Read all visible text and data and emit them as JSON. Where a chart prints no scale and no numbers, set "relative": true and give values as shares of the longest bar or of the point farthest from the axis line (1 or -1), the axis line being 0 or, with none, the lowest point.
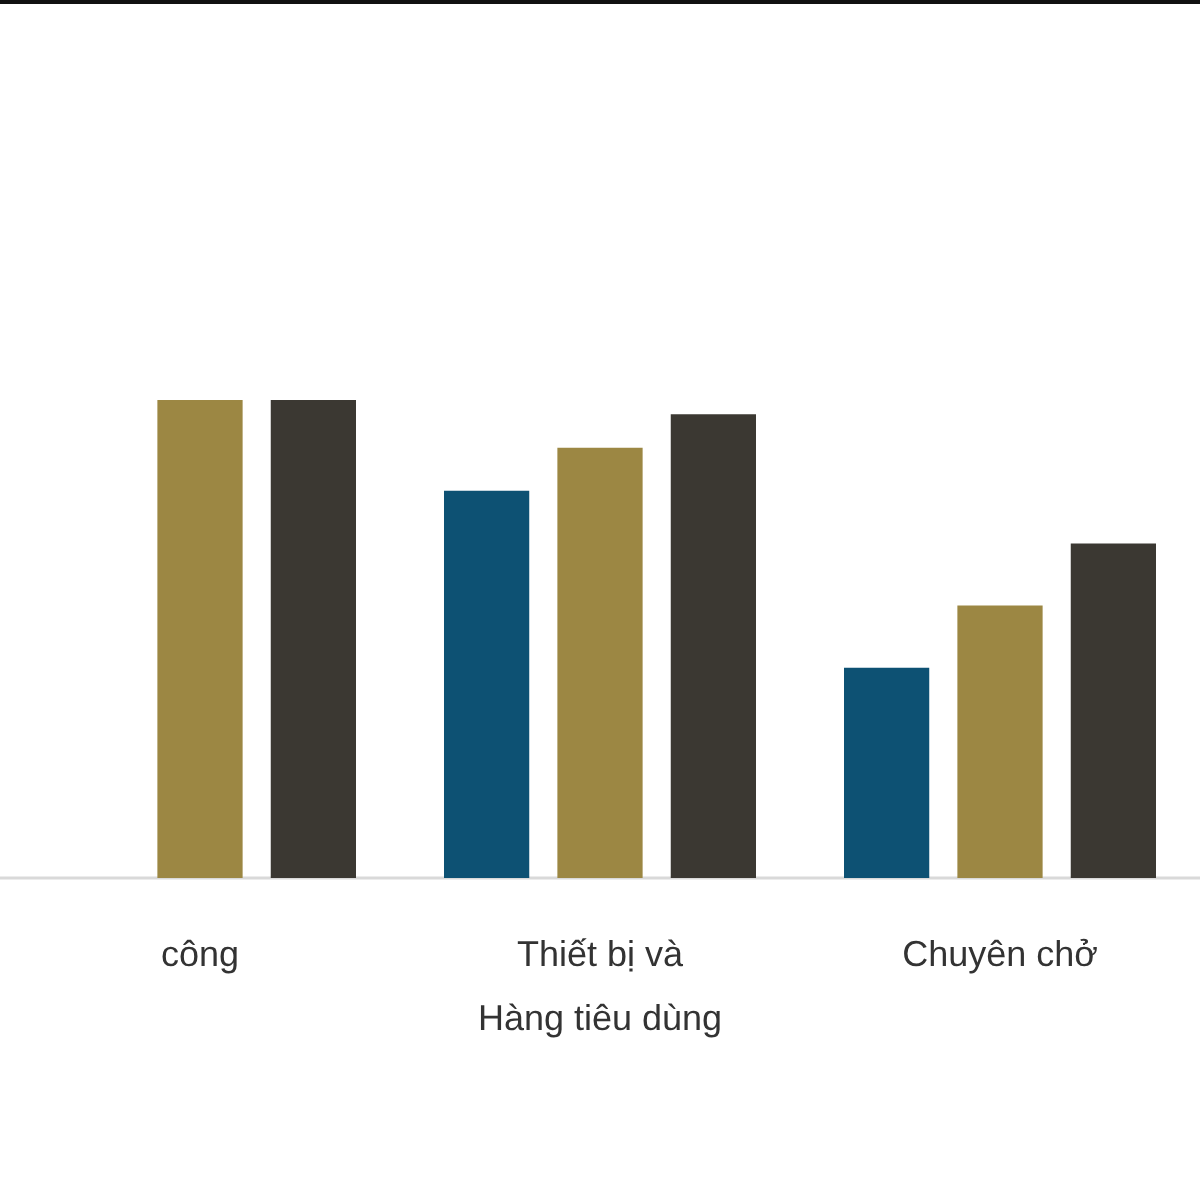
{
  "chart_data": {
    "type": "bar",
    "relative": true,
    "categories": [
      "công",
      "Thiết bị và\nHàng tiêu dùng",
      "Chuyên chở"
    ],
    "series": [
      {
        "color": "#0d5173",
        "values": [
          null,
          0.81,
          0.44
        ]
      },
      {
        "color": "#9c8743",
        "values": [
          1,
          0.9,
          0.57
        ]
      },
      {
        "color": "#3b3832",
        "values": [
          1,
          0.97,
          0.7
        ]
      }
    ]
  }
}
